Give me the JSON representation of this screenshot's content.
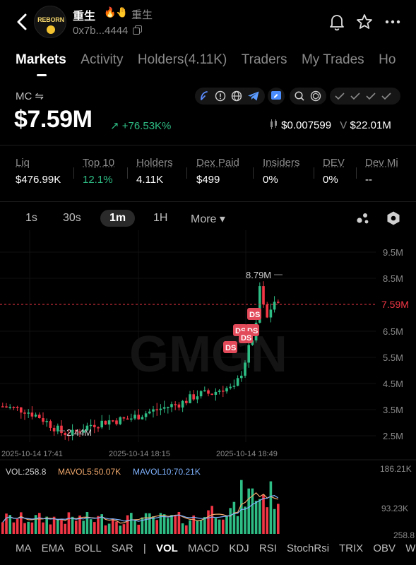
{
  "header": {
    "token_name": "重生",
    "token_emojis": "🔥🤚",
    "token_sub": "重生",
    "address": "0x7b...4444",
    "logo_text": "REBORN"
  },
  "tabs": [
    {
      "label": "Markets",
      "active": true
    },
    {
      "label": "Activity",
      "active": false
    },
    {
      "label": "Holders(4.11K)",
      "active": false
    },
    {
      "label": "Traders",
      "active": false
    },
    {
      "label": "My Trades",
      "active": false
    },
    {
      "label": "Ho",
      "active": false
    }
  ],
  "market": {
    "mc_label": "MC ⇋",
    "mc_value": "$7.59M",
    "mc_change": "↗ +76.53K%",
    "price": "$0.007599",
    "volume_prefix": "V",
    "volume": "$22.01M"
  },
  "stats": [
    {
      "key": "Liq",
      "value": "$476.99K",
      "color": "#ffffff"
    },
    {
      "key": "Top 10",
      "value": "12.1%",
      "color": "#2ebd85"
    },
    {
      "key": "Holders",
      "value": "4.11K",
      "color": "#ffffff"
    },
    {
      "key": "Dex Paid",
      "value": "$499",
      "color": "#ffffff"
    },
    {
      "key": "Insiders",
      "value": "0%",
      "color": "#ffffff"
    },
    {
      "key": "DEV",
      "value": "0%",
      "color": "#ffffff"
    },
    {
      "key": "Dev Mi",
      "value": "--",
      "color": "#ffffff"
    }
  ],
  "timeframes": [
    {
      "label": "1s",
      "active": false
    },
    {
      "label": "30s",
      "active": false
    },
    {
      "label": "1m",
      "active": true
    },
    {
      "label": "1H",
      "active": false
    },
    {
      "label": "More ▾",
      "active": false
    }
  ],
  "chart_data": {
    "type": "candlestick",
    "watermark": "GMGN",
    "y_ticks": [
      "9.5M",
      "8.5M",
      "7.5M",
      "6.5M",
      "5.5M",
      "4.5M",
      "3.5M",
      "2.5M"
    ],
    "current_price_label": "7.59M",
    "high_label": "8.79M",
    "low_label": "2.44M",
    "x_ticks": [
      "2025-10-14 17:41",
      "2025-10-14 18:15",
      "2025-10-14 18:49"
    ],
    "marker_label": "DS",
    "volume_legend": {
      "vol": "VOL:258.8",
      "mavol5": "MAVOL5:50.07K",
      "mavol10": "MAVOL10:70.21K"
    },
    "volume_ticks": [
      "186.21K",
      "93.23K",
      "258.8"
    ],
    "colors": {
      "up": "#2ebd85",
      "down": "#f23645",
      "mavol5": "#f0a86b",
      "mavol10": "#7fb3ff"
    }
  },
  "indicators": [
    {
      "label": "MA",
      "active": false
    },
    {
      "label": "EMA",
      "active": false
    },
    {
      "label": "BOLL",
      "active": false
    },
    {
      "label": "SAR",
      "active": false
    },
    {
      "label": "|",
      "active": false
    },
    {
      "label": "VOL",
      "active": true
    },
    {
      "label": "MACD",
      "active": false
    },
    {
      "label": "KDJ",
      "active": false
    },
    {
      "label": "RSI",
      "active": false
    },
    {
      "label": "StochRsi",
      "active": false
    },
    {
      "label": "TRIX",
      "active": false
    },
    {
      "label": "OBV",
      "active": false
    },
    {
      "label": "WR",
      "active": false
    }
  ]
}
